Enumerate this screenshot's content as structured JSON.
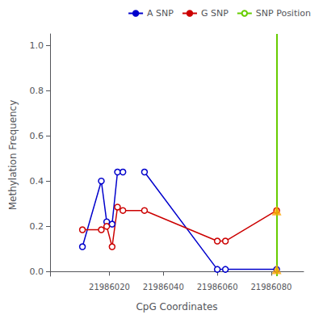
{
  "chart_data": {
    "type": "line",
    "xlabel": "CpG Coordinates",
    "ylabel": "Methylation Frequency",
    "series": [
      {
        "name": "A SNP",
        "type": "line",
        "color": "#0000CC",
        "marker": "open circle",
        "line_style": "solid",
        "runs": [
          {
            "x": [
              21986010,
              21986017,
              21986019,
              21986021,
              21986023,
              21986025
            ],
            "values": [
              0.11,
              0.4,
              0.22,
              0.21,
              0.44,
              0.44
            ]
          },
          {
            "x": [
              21986033,
              21986060,
              21986063,
              21986082
            ],
            "values": [
              0.44,
              0.01,
              0.01,
              0.01
            ]
          }
        ]
      },
      {
        "name": "G SNP",
        "type": "line",
        "color": "#CC0000",
        "marker": "open circle",
        "line_style": "solid",
        "runs": [
          {
            "x": [
              21986010,
              21986017,
              21986019,
              21986021,
              21986023,
              21986025,
              21986033,
              21986060,
              21986063,
              21986082
            ],
            "values": [
              0.185,
              0.185,
              0.2,
              0.11,
              0.285,
              0.27,
              0.27,
              0.135,
              0.135,
              0.27
            ]
          }
        ]
      },
      {
        "name": "SNP Position",
        "type": "vline",
        "color": "#66CC00",
        "line_style": "solid",
        "x": 21986082
      },
      {
        "type": "scatter",
        "color": "#FFA500",
        "marker": "triangle",
        "x": [
          21986082,
          21986082
        ],
        "values": [
          0.01,
          0.27
        ]
      }
    ],
    "xlim": [
      21985998,
      21986092
    ],
    "xticks": [
      21986020,
      21986040,
      21986060,
      21986080
    ],
    "ylim": [
      -0.02,
      1.05
    ],
    "yticks": [
      {
        "value": 0.0,
        "label": "0.0"
      },
      {
        "value": 0.2,
        "label": "0.2"
      },
      {
        "value": 0.4,
        "label": "0.4"
      },
      {
        "value": 0.6,
        "label": "0.6"
      },
      {
        "value": 0.8,
        "label": "0.8"
      },
      {
        "value": 1.0,
        "label": "1.0"
      }
    ],
    "grid": false,
    "legend": "upper right"
  }
}
